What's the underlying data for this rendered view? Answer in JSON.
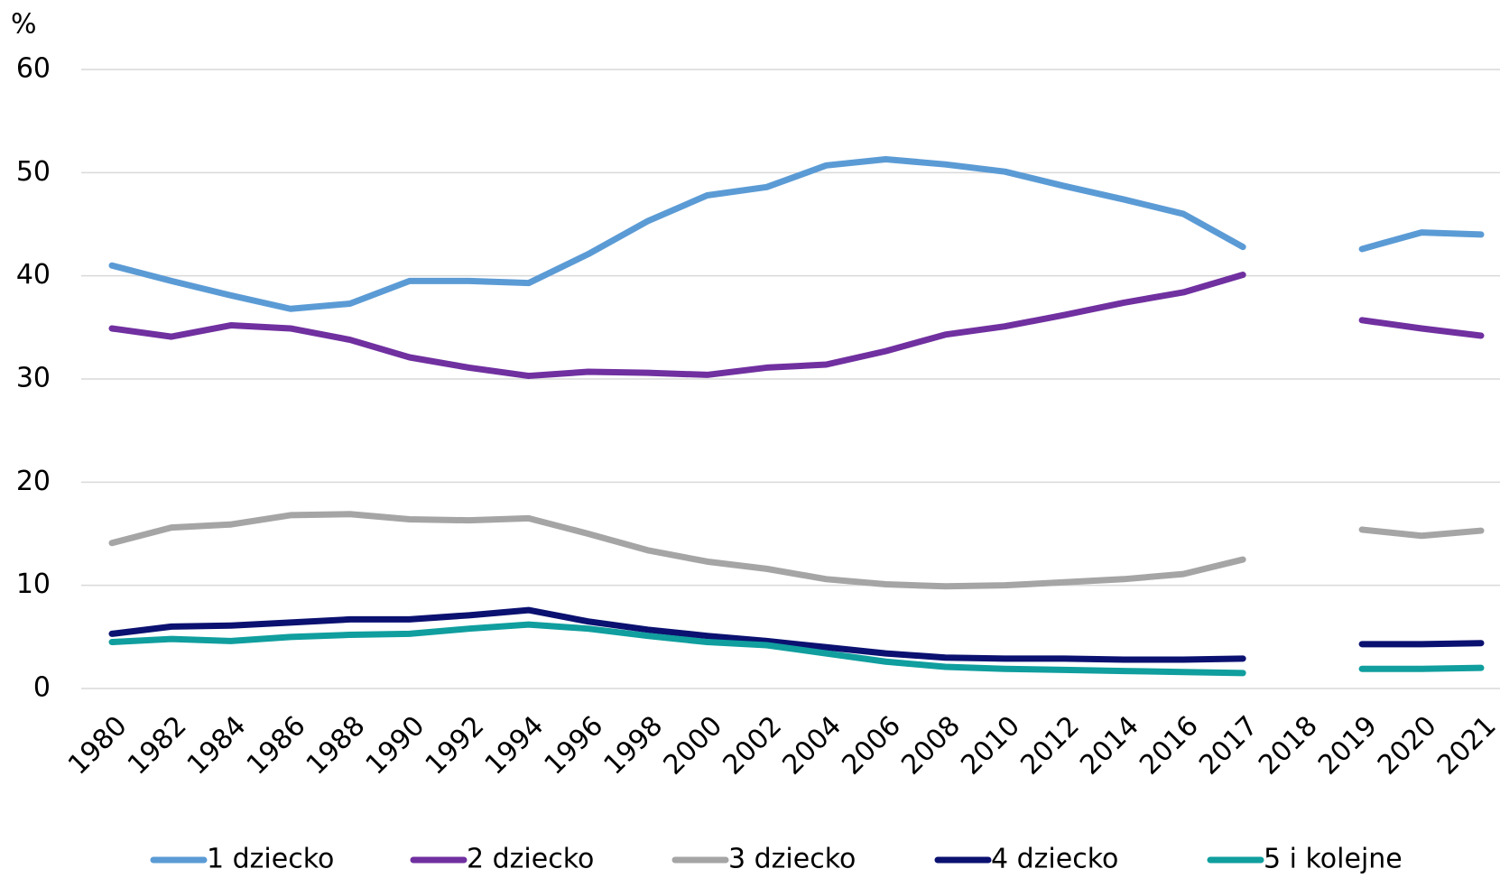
{
  "chart_data": {
    "type": "line",
    "y_label": "%",
    "categories": [
      "1980",
      "1982",
      "1984",
      "1986",
      "1988",
      "1990",
      "1992",
      "1994",
      "1996",
      "1998",
      "2000",
      "2002",
      "2004",
      "2006",
      "2008",
      "2010",
      "2012",
      "2014",
      "2016",
      "2017",
      "2018",
      "2019",
      "2020",
      "2021"
    ],
    "series": [
      {
        "name": "1 dziecko",
        "color": "#5b9bd5",
        "values": [
          41.0,
          39.5,
          38.1,
          36.8,
          37.3,
          39.5,
          39.5,
          39.3,
          42.1,
          45.3,
          47.8,
          48.6,
          50.7,
          51.3,
          50.8,
          50.1,
          48.7,
          47.4,
          46.0,
          42.8,
          null,
          42.6,
          44.2,
          44.0
        ]
      },
      {
        "name": "2 dziecko",
        "color": "#7030a0",
        "values": [
          34.9,
          34.1,
          35.2,
          34.9,
          33.8,
          32.1,
          31.1,
          30.3,
          30.7,
          30.6,
          30.4,
          31.1,
          31.4,
          32.7,
          34.3,
          35.1,
          36.2,
          37.4,
          38.4,
          40.1,
          null,
          35.7,
          34.9,
          34.2
        ]
      },
      {
        "name": "3 dziecko",
        "color": "#a5a5a5",
        "values": [
          14.1,
          15.6,
          15.9,
          16.8,
          16.9,
          16.4,
          16.3,
          16.5,
          15.0,
          13.4,
          12.3,
          11.6,
          10.6,
          10.1,
          9.9,
          10.0,
          10.3,
          10.6,
          11.1,
          12.5,
          null,
          15.4,
          14.8,
          15.3
        ]
      },
      {
        "name": "4 dziecko",
        "color": "#0b1170",
        "values": [
          5.3,
          6.0,
          6.1,
          6.4,
          6.7,
          6.7,
          7.1,
          7.6,
          6.5,
          5.7,
          5.1,
          4.6,
          4.0,
          3.4,
          3.0,
          2.9,
          2.9,
          2.8,
          2.8,
          2.9,
          null,
          4.3,
          4.3,
          4.4
        ]
      },
      {
        "name": "5 i kolejne",
        "color": "#109e9e",
        "values": [
          4.5,
          4.8,
          4.6,
          5.0,
          5.2,
          5.3,
          5.8,
          6.2,
          5.8,
          5.1,
          4.5,
          4.2,
          3.4,
          2.6,
          2.1,
          1.9,
          1.8,
          1.7,
          1.6,
          1.5,
          null,
          1.9,
          1.9,
          2.0
        ]
      }
    ],
    "ylim": [
      0,
      60
    ],
    "yticks": [
      0,
      10,
      20,
      30,
      40,
      50,
      60
    ],
    "grid": true,
    "legend": "bottom"
  }
}
